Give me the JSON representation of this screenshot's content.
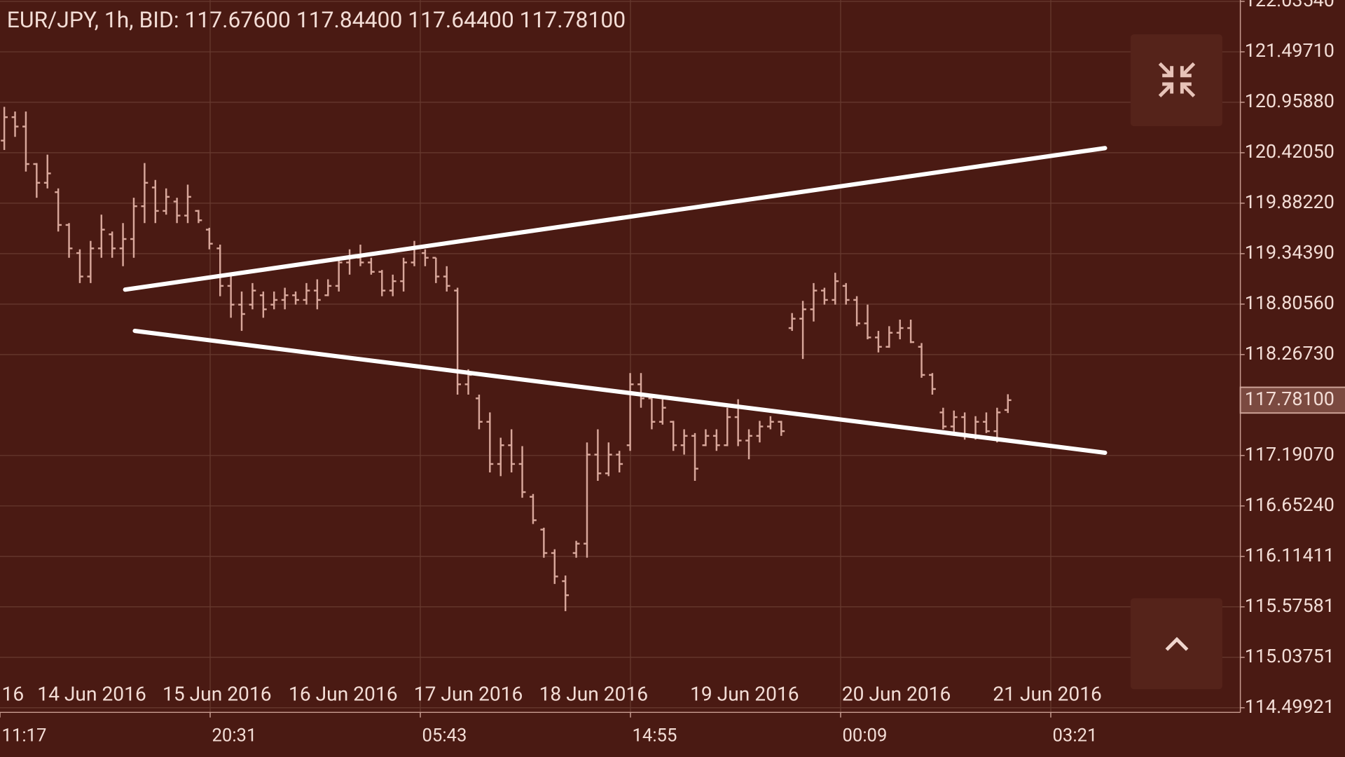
{
  "chart_data": {
    "type": "ohlc",
    "title": "EUR/JPY, 1h, BID: 117.67600 117.84400 117.64400 117.78100",
    "color": "#d8a79b",
    "ylim": [
      114.45,
      122.05
    ],
    "yticks": [
      114.49921,
      115.03751,
      115.57581,
      116.11411,
      {
        "value": 116.6524,
        "label": "116.65240"
      },
      {
        "value": 117.1907,
        "label": "117.19070"
      },
      {
        "value": 118.2673,
        "label": "118.26730"
      },
      {
        "value": 118.8056,
        "label": "118.80560"
      },
      {
        "value": 119.3439,
        "label": "119.34390"
      },
      {
        "value": 119.8822,
        "label": "119.88220"
      },
      {
        "value": 120.4205,
        "label": "120.42050"
      },
      {
        "value": 120.9588,
        "label": "120.95880"
      },
      {
        "value": 121.4971,
        "label": "121.49710"
      },
      {
        "value": 122.0354,
        "label": "122.03540"
      }
    ],
    "grid": true,
    "last_price": {
      "value": 117.781,
      "label": "117.78100"
    },
    "date_labels": [
      "16",
      "14 Jun 2016",
      "15 Jun 2016",
      "16 Jun 2016",
      "17 Jun 2016",
      "18 Jun 2016",
      "19 Jun 2016",
      "20 Jun 2016",
      "21 Jun 2016"
    ],
    "time_labels": [
      "11:17",
      "20:31",
      "05:43",
      "14:55",
      "00:09",
      "03:21"
    ],
    "open": [
      120.55,
      120.8,
      120.7,
      120.3,
      120.1,
      120.0,
      119.65,
      119.35,
      119.1,
      119.4,
      119.55,
      119.4,
      119.5,
      119.85,
      120.05,
      119.8,
      119.9,
      119.75,
      119.8,
      119.6,
      119.4,
      119.0,
      118.8,
      118.8,
      118.9,
      118.8,
      118.85,
      118.9,
      118.85,
      118.95,
      118.9,
      119.0,
      119.25,
      119.3,
      119.25,
      119.15,
      118.95,
      119.05,
      119.25,
      119.35,
      119.3,
      119.1,
      118.95,
      117.95,
      117.8,
      117.55,
      117.1,
      117.3,
      117.1,
      116.75,
      116.4,
      116.15,
      115.85,
      116.15,
      116.25,
      117.2,
      117.0,
      117.2,
      117.3,
      117.95,
      117.8,
      117.55,
      117.55,
      117.3,
      117.4,
      117.3,
      117.4,
      117.3,
      117.6,
      117.35,
      117.4,
      117.5,
      117.55,
      118.55,
      118.65,
      118.75,
      118.95,
      118.85,
      119.0,
      118.85,
      118.6,
      118.45,
      118.35,
      118.5,
      118.55,
      118.35,
      118.05,
      117.65,
      117.5,
      117.6,
      117.4,
      117.55,
      117.45,
      117.676
    ],
    "high": [
      120.91,
      120.86,
      120.86,
      120.31,
      120.4,
      120.04,
      119.67,
      119.39,
      119.48,
      119.76,
      119.58,
      119.67,
      119.94,
      120.31,
      120.13,
      120.04,
      119.94,
      120.08,
      119.81,
      119.62,
      119.44,
      119.12,
      118.94,
      119.03,
      118.94,
      118.94,
      118.98,
      118.94,
      119.03,
      119.07,
      119.07,
      119.3,
      119.39,
      119.44,
      119.3,
      119.17,
      119.12,
      119.3,
      119.48,
      119.39,
      119.3,
      119.21,
      118.98,
      118.11,
      117.84,
      117.65,
      117.38,
      117.47,
      117.29,
      116.78,
      116.42,
      116.19,
      115.91,
      116.28,
      117.33,
      117.47,
      117.33,
      117.24,
      118.07,
      118.07,
      117.84,
      117.79,
      117.56,
      117.47,
      117.43,
      117.47,
      117.47,
      117.7,
      117.79,
      117.47,
      117.56,
      117.61,
      117.56,
      118.71,
      118.84,
      119.03,
      118.98,
      119.14,
      119.03,
      118.89,
      118.8,
      118.52,
      118.57,
      118.64,
      118.64,
      118.39,
      118.07,
      117.7,
      117.67,
      117.65,
      117.61,
      117.65,
      117.7,
      117.844
    ],
    "low": [
      120.45,
      120.59,
      120.22,
      119.94,
      120.04,
      119.58,
      119.3,
      119.03,
      119.03,
      119.3,
      119.3,
      119.21,
      119.3,
      119.67,
      119.67,
      119.76,
      119.67,
      119.67,
      119.67,
      119.39,
      118.89,
      118.66,
      118.52,
      118.75,
      118.66,
      118.75,
      118.75,
      118.8,
      118.8,
      118.75,
      118.89,
      118.94,
      119.12,
      119.21,
      119.12,
      118.89,
      118.89,
      118.94,
      119.21,
      119.21,
      119.03,
      118.94,
      117.84,
      117.84,
      117.47,
      117.01,
      116.97,
      117.01,
      116.74,
      116.46,
      116.1,
      115.82,
      115.53,
      116.1,
      116.1,
      116.92,
      116.97,
      117.01,
      117.24,
      117.7,
      117.47,
      117.52,
      117.24,
      117.2,
      116.92,
      117.29,
      117.24,
      117.29,
      117.29,
      117.15,
      117.33,
      117.47,
      117.4,
      118.52,
      118.22,
      118.62,
      118.8,
      118.8,
      118.8,
      118.57,
      118.43,
      118.29,
      118.34,
      118.43,
      118.39,
      118.02,
      117.84,
      117.47,
      117.43,
      117.36,
      117.36,
      117.43,
      117.33,
      117.644
    ],
    "close": [
      120.8,
      120.7,
      120.3,
      120.1,
      120.2,
      119.65,
      119.4,
      119.1,
      119.4,
      119.6,
      119.4,
      119.5,
      119.85,
      120.1,
      119.8,
      119.95,
      119.75,
      119.95,
      119.7,
      119.45,
      119.0,
      118.8,
      118.7,
      118.95,
      118.75,
      118.85,
      118.9,
      118.85,
      118.95,
      118.85,
      119.0,
      119.25,
      119.3,
      119.25,
      119.15,
      118.95,
      119.05,
      119.25,
      119.4,
      119.3,
      119.1,
      119.0,
      117.95,
      118.05,
      117.55,
      117.1,
      117.3,
      117.1,
      116.8,
      116.5,
      116.15,
      115.9,
      115.7,
      116.25,
      117.2,
      117.0,
      117.2,
      117.1,
      117.95,
      117.8,
      117.55,
      117.7,
      117.3,
      117.4,
      117.05,
      117.4,
      117.3,
      117.6,
      117.35,
      117.4,
      117.5,
      117.55,
      117.45,
      118.65,
      118.75,
      118.95,
      118.85,
      119.05,
      118.85,
      118.6,
      118.45,
      118.35,
      118.5,
      118.55,
      118.4,
      118.05,
      117.9,
      117.5,
      117.6,
      117.4,
      117.55,
      117.45,
      117.65,
      117.781
    ],
    "trendlines": [
      {
        "start_index": 11.2,
        "start_price": 118.96,
        "end_index": 102.0,
        "end_price": 120.47
      },
      {
        "start_index": 12.1,
        "start_price": 118.52,
        "end_index": 102.0,
        "end_price": 117.22
      }
    ]
  }
}
